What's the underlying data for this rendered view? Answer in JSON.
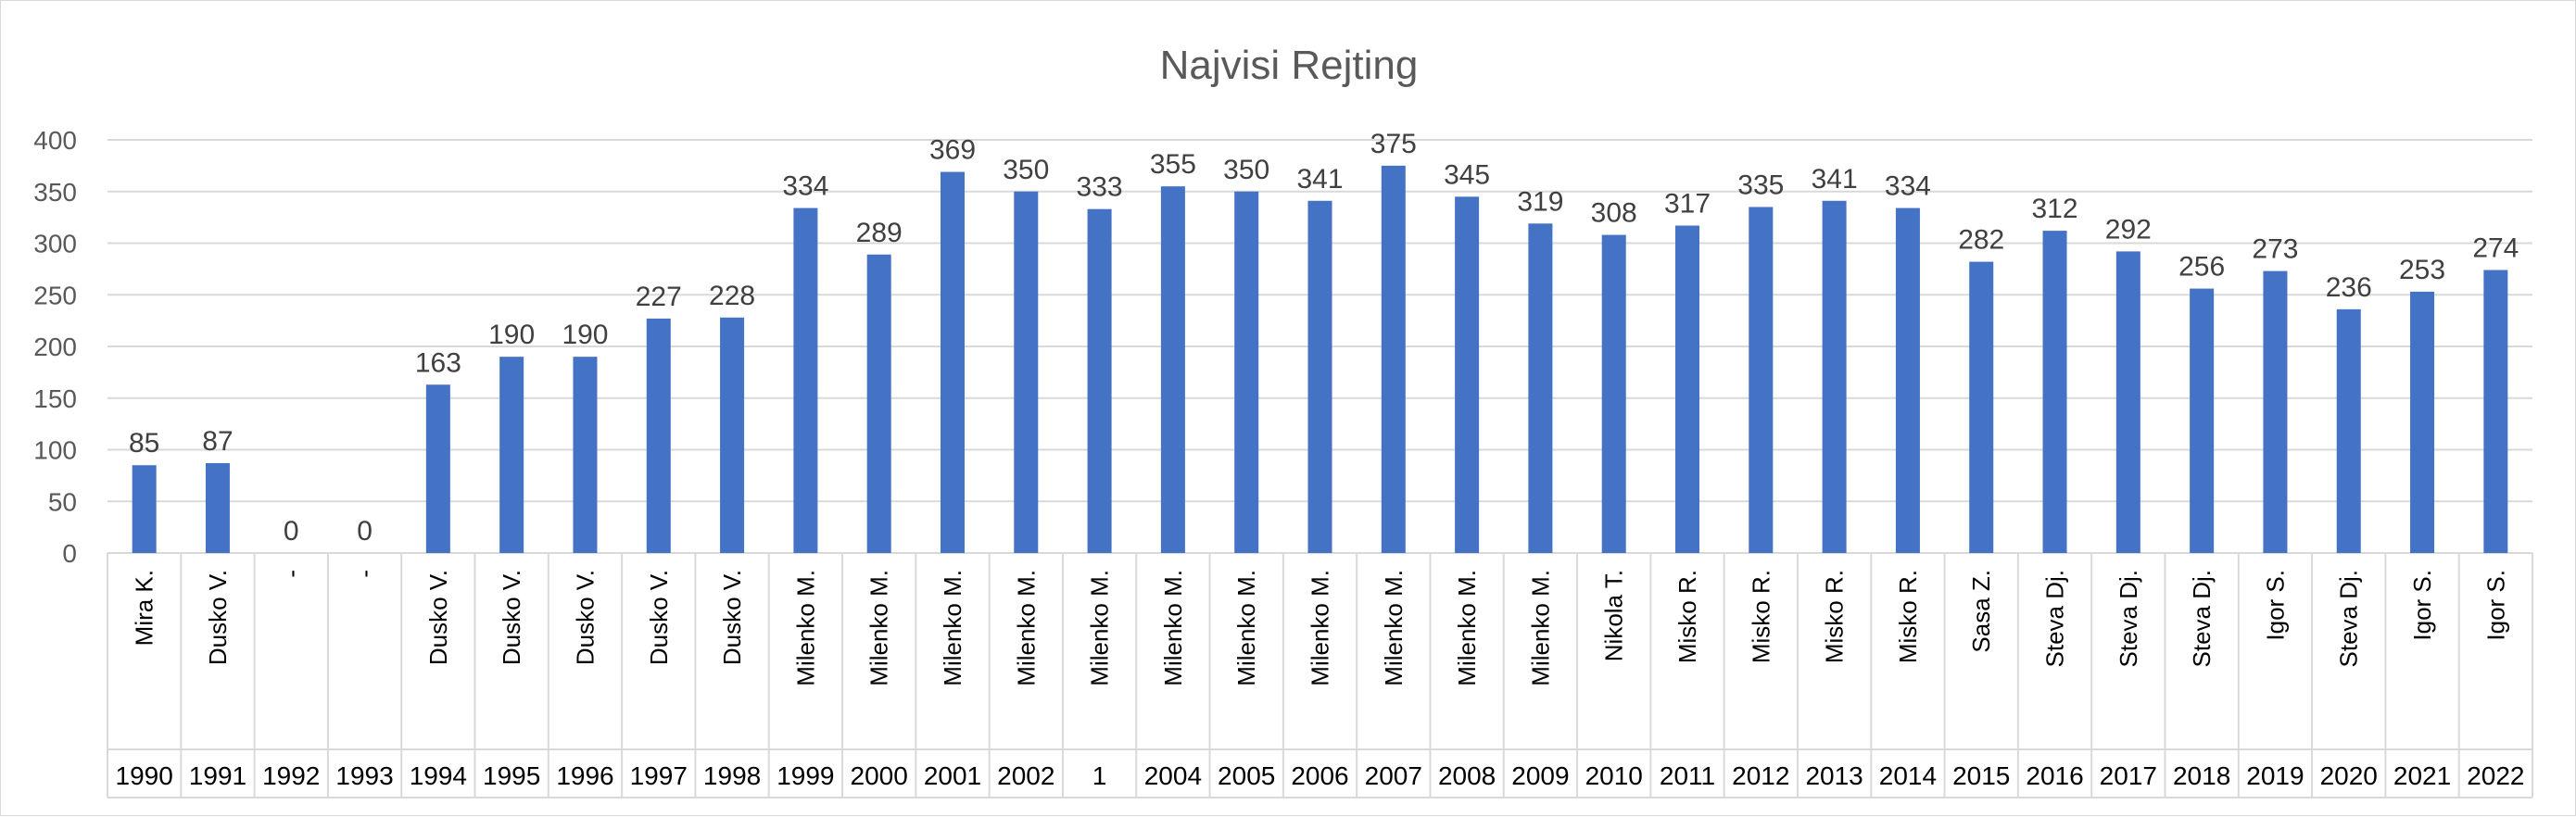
{
  "chart_data": {
    "type": "bar",
    "title": "Najvisi Rejting",
    "ylim": [
      0,
      400
    ],
    "yticks": [
      "0",
      "50",
      "100",
      "150",
      "200",
      "250",
      "300",
      "350",
      "400"
    ],
    "grid": true,
    "legend": "none",
    "color": "#4472c4",
    "categories": [
      {
        "name": "Mira K.",
        "year": "1990"
      },
      {
        "name": "Dusko V.",
        "year": "1991"
      },
      {
        "name": "-",
        "year": "1992"
      },
      {
        "name": "-",
        "year": "1993"
      },
      {
        "name": "Dusko V.",
        "year": "1994"
      },
      {
        "name": "Dusko V.",
        "year": "1995"
      },
      {
        "name": "Dusko V.",
        "year": "1996"
      },
      {
        "name": "Dusko V.",
        "year": "1997"
      },
      {
        "name": "Dusko V.",
        "year": "1998"
      },
      {
        "name": "Milenko M.",
        "year": "1999"
      },
      {
        "name": "Milenko M.",
        "year": "2000"
      },
      {
        "name": "Milenko M.",
        "year": "2001"
      },
      {
        "name": "Milenko M.",
        "year": "2002"
      },
      {
        "name": "Milenko M.",
        "year": "1"
      },
      {
        "name": "Milenko M.",
        "year": "2004"
      },
      {
        "name": "Milenko M.",
        "year": "2005"
      },
      {
        "name": "Milenko M.",
        "year": "2006"
      },
      {
        "name": "Milenko M.",
        "year": "2007"
      },
      {
        "name": "Milenko M.",
        "year": "2008"
      },
      {
        "name": "Milenko M.",
        "year": "2009"
      },
      {
        "name": "Nikola T.",
        "year": "2010"
      },
      {
        "name": "Misko R.",
        "year": "2011"
      },
      {
        "name": "Misko R.",
        "year": "2012"
      },
      {
        "name": "Misko R.",
        "year": "2013"
      },
      {
        "name": "Misko R.",
        "year": "2014"
      },
      {
        "name": "Sasa Z.",
        "year": "2015"
      },
      {
        "name": "Steva Dj.",
        "year": "2016"
      },
      {
        "name": "Steva Dj.",
        "year": "2017"
      },
      {
        "name": "Steva Dj.",
        "year": "2018"
      },
      {
        "name": "Igor S.",
        "year": "2019"
      },
      {
        "name": "Steva Dj.",
        "year": "2020"
      },
      {
        "name": "Igor S.",
        "year": "2021"
      },
      {
        "name": "Igor S.",
        "year": "2022"
      }
    ],
    "values": [
      85,
      87,
      0,
      0,
      163,
      190,
      190,
      227,
      228,
      334,
      289,
      369,
      350,
      333,
      355,
      350,
      341,
      375,
      345,
      319,
      308,
      317,
      335,
      341,
      334,
      282,
      312,
      292,
      256,
      273,
      236,
      253,
      274
    ]
  }
}
